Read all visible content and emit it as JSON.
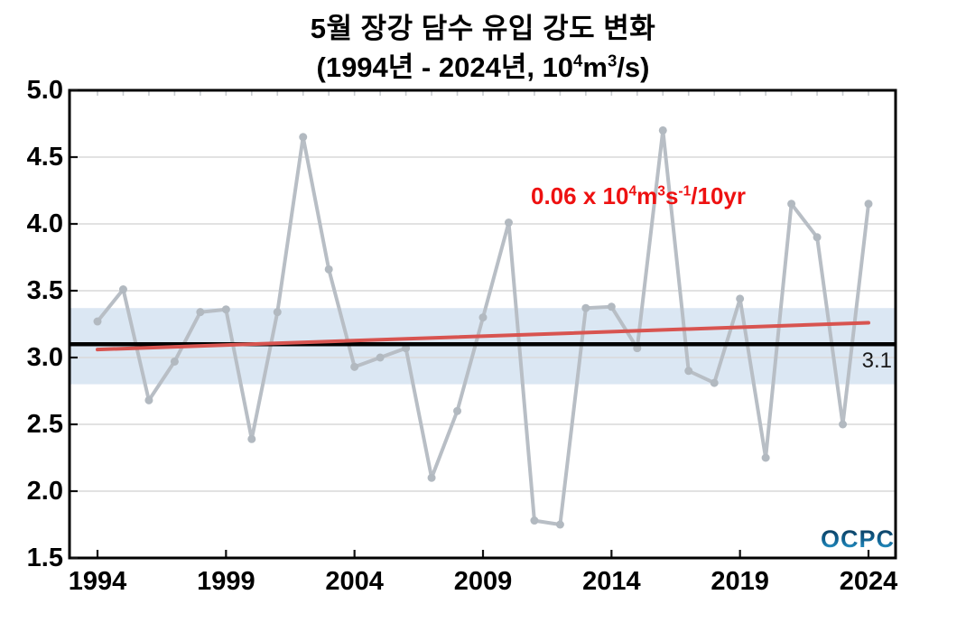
{
  "title": {
    "line1": "5월 장강 담수 유입 강도 변화",
    "line2_parts": {
      "base1": "(1994년 - 2024년, 10",
      "sup1": "4",
      "base2": "m",
      "sup2": "3",
      "base3": "/s)"
    }
  },
  "annotation": {
    "color": "#ee1111",
    "parts": {
      "base1": "0.06 x 10",
      "sup1": "4",
      "base2": "m",
      "sup2": "3",
      "base3": "s",
      "sup3": "-1",
      "base4": "/10yr"
    }
  },
  "mean_label": "3.1",
  "logo_text": "OCPC",
  "chart_data": {
    "type": "line",
    "title": "5월 장강 담수 유입 강도 변화",
    "subtitle": "(1994년 - 2024년, 10⁴m³/s)",
    "xlabel": "",
    "ylabel": "",
    "x": [
      1994,
      1995,
      1996,
      1997,
      1998,
      1999,
      2000,
      2001,
      2002,
      2003,
      2004,
      2005,
      2006,
      2007,
      2008,
      2009,
      2010,
      2011,
      2012,
      2013,
      2014,
      2015,
      2016,
      2017,
      2018,
      2019,
      2020,
      2021,
      2022,
      2023,
      2024
    ],
    "values": [
      3.27,
      3.51,
      2.68,
      2.97,
      3.34,
      3.36,
      2.39,
      3.34,
      4.65,
      3.66,
      2.93,
      3.0,
      3.07,
      2.1,
      2.6,
      3.3,
      4.01,
      1.78,
      1.75,
      3.37,
      3.38,
      3.07,
      4.7,
      2.9,
      2.81,
      3.44,
      2.25,
      4.15,
      3.9,
      2.5,
      4.15
    ],
    "ylim": [
      1.5,
      5.0
    ],
    "xlim": [
      1993,
      2025
    ],
    "y_ticks": [
      "1.5",
      "2.0",
      "2.5",
      "3.0",
      "3.5",
      "4.0",
      "4.5",
      "5.0"
    ],
    "x_ticks": [
      "1994",
      "1999",
      "2004",
      "2009",
      "2014",
      "2019",
      "2024"
    ],
    "grid": true,
    "legend": false,
    "mean_line": {
      "value": 3.1,
      "label": "3.1",
      "color": "#000000"
    },
    "band": {
      "low": 2.8,
      "high": 3.37,
      "color": "#dbe7f3"
    },
    "trend_line": {
      "start_year": 1994,
      "start_value": 3.06,
      "end_year": 2024,
      "end_value": 3.26,
      "rate_label": "0.06 x 10⁴m³s⁻¹/10yr",
      "color": "#d85450"
    },
    "colors": {
      "series": "#b8bec5",
      "marker": "#b2b9c0",
      "grid": "#d9d9d9",
      "minor_tick": "#c9cdd1",
      "frame": "#000000"
    }
  }
}
